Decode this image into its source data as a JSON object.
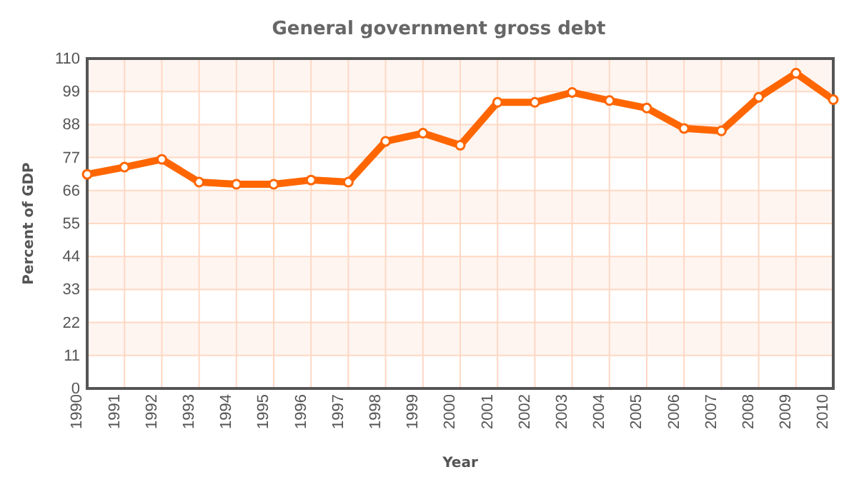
{
  "chart_data": {
    "type": "line",
    "title": "General government gross debt",
    "xlabel": "Year",
    "ylabel": "Percent of GDP",
    "categories": [
      "1990",
      "1991",
      "1992",
      "1993",
      "1994",
      "1995",
      "1996",
      "1997",
      "1998",
      "1999",
      "2000",
      "2001",
      "2002",
      "2003",
      "2004",
      "2005",
      "2006",
      "2007",
      "2008",
      "2009",
      "2010"
    ],
    "series": [
      {
        "color": "#ff6600",
        "values": [
          71.4,
          73.8,
          76.4,
          68.8,
          68.1,
          68.1,
          69.5,
          68.8,
          82.4,
          85.1,
          81.1,
          95.4,
          95.4,
          98.7,
          96.0,
          93.5,
          86.7,
          85.9,
          97.1,
          105.1,
          96.3
        ]
      }
    ],
    "ylim": [
      0,
      110
    ],
    "yticks": [
      0,
      11,
      22,
      33,
      44,
      55,
      66,
      77,
      88,
      99,
      110
    ],
    "grid": true,
    "marker": "circle",
    "line_style": "solid"
  }
}
